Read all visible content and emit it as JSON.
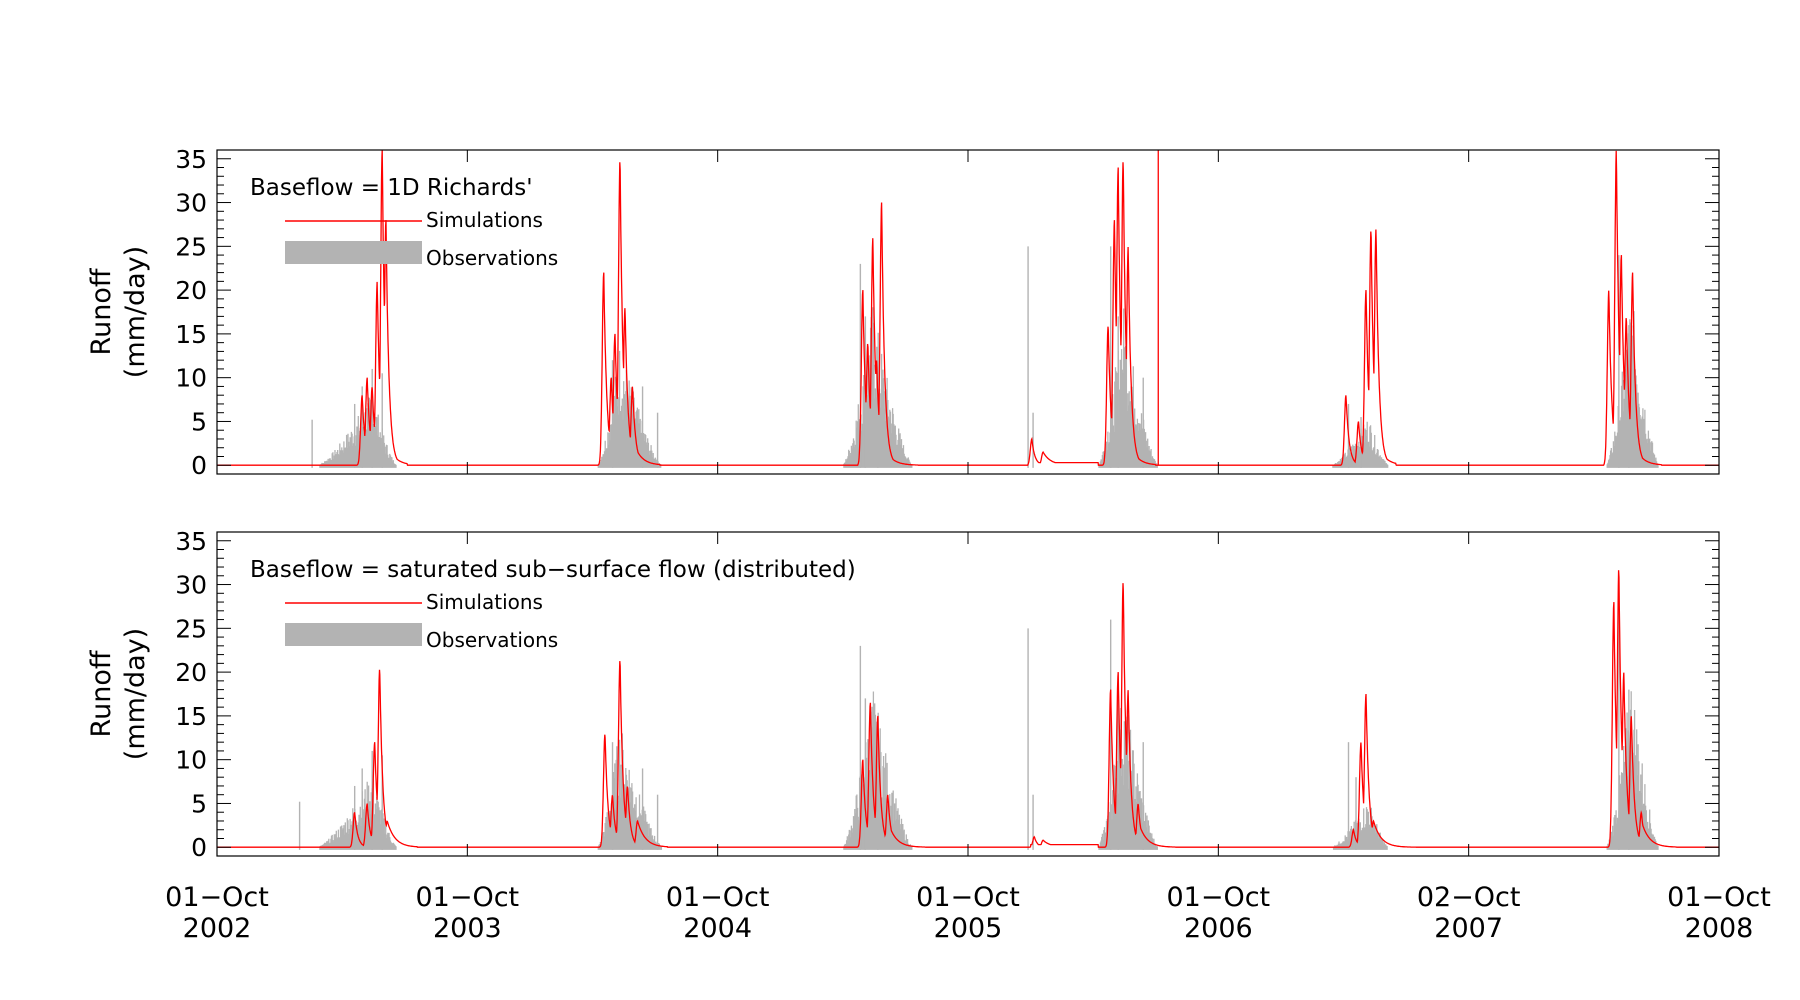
{
  "chart_data": [
    {
      "type": "area",
      "panel": "top",
      "annotation": "Baseflow = 1D Richards'",
      "ylabel_line1": "Runoff",
      "ylabel_line2": "(mm/day)",
      "ylim": [
        -1,
        36
      ],
      "yticks": [
        0,
        5,
        10,
        15,
        20,
        25,
        30,
        35
      ],
      "legend": [
        {
          "name": "Simulations",
          "style": "line",
          "color": "#ff0000"
        },
        {
          "name": "Observations",
          "style": "fill",
          "color": "#b3b3b3"
        }
      ],
      "observations": {
        "seasons": [
          {
            "start": 0.4,
            "peak": 0.62,
            "end": 0.72,
            "height": 6,
            "spikes": [
              [
                0.38,
                5.2
              ],
              [
                0.55,
                7
              ],
              [
                0.58,
                9
              ],
              [
                0.62,
                11
              ],
              [
                0.66,
                10.5
              ]
            ]
          },
          {
            "start": 1.52,
            "peak": 1.61,
            "end": 1.78,
            "height": 10,
            "spikes": [
              [
                1.58,
                12
              ],
              [
                1.7,
                9
              ],
              [
                1.76,
                6
              ]
            ]
          },
          {
            "start": 2.5,
            "peak": 2.62,
            "end": 2.78,
            "height": 13,
            "spikes": [
              [
                2.57,
                23
              ],
              [
                2.59,
                17
              ],
              [
                2.64,
                12
              ]
            ]
          },
          {
            "start": 3.27,
            "peak": 3.27,
            "end": 3.27,
            "height": 0,
            "spikes": [
              [
                3.24,
                25
              ],
              [
                3.26,
                6
              ]
            ]
          },
          {
            "start": 3.52,
            "peak": 3.62,
            "end": 3.76,
            "height": 13,
            "spikes": [
              [
                3.57,
                25
              ],
              [
                3.6,
                17
              ],
              [
                3.7,
                10
              ]
            ]
          },
          {
            "start": 4.45,
            "peak": 4.6,
            "end": 4.68,
            "height": 4,
            "spikes": [
              [
                4.52,
                7
              ],
              [
                4.57,
                5.5
              ]
            ]
          },
          {
            "start": 5.55,
            "peak": 5.65,
            "end": 5.76,
            "height": 14,
            "spikes": [
              [
                5.6,
                24
              ],
              [
                5.64,
                16
              ]
            ]
          }
        ]
      },
      "simulations": {
        "events": [
          {
            "start": 0.56,
            "end": 0.71,
            "peaks": [
              [
                0.58,
                8
              ],
              [
                0.6,
                10
              ],
              [
                0.62,
                9
              ],
              [
                0.64,
                21
              ],
              [
                0.66,
                36
              ],
              [
                0.675,
                28
              ]
            ]
          },
          {
            "start": 1.53,
            "end": 1.72,
            "peaks": [
              [
                1.545,
                22
              ],
              [
                1.575,
                10
              ],
              [
                1.59,
                15
              ],
              [
                1.61,
                35
              ],
              [
                1.63,
                18
              ],
              [
                1.66,
                9
              ]
            ]
          },
          {
            "start": 2.57,
            "end": 2.75,
            "peaks": [
              [
                2.58,
                20
              ],
              [
                2.6,
                14
              ],
              [
                2.62,
                26
              ],
              [
                2.635,
                12
              ],
              [
                2.655,
                30
              ]
            ]
          },
          {
            "start": 3.25,
            "end": 3.52,
            "peaks": [
              [
                3.255,
                3
              ],
              [
                3.3,
                1.5
              ]
            ],
            "plateau": 0.3
          },
          {
            "start": 3.53,
            "end": 3.7,
            "peaks": [
              [
                3.56,
                16
              ],
              [
                3.585,
                28
              ],
              [
                3.6,
                34
              ],
              [
                3.62,
                35
              ],
              [
                3.64,
                25
              ]
            ]
          },
          {
            "start": 4.5,
            "end": 4.66,
            "peaks": [
              [
                4.51,
                8
              ],
              [
                4.56,
                5
              ],
              [
                4.59,
                20
              ],
              [
                4.61,
                27
              ],
              [
                4.63,
                27
              ]
            ]
          },
          {
            "start": 5.55,
            "end": 5.72,
            "peaks": [
              [
                5.56,
                20
              ],
              [
                5.59,
                36
              ],
              [
                5.61,
                24
              ],
              [
                5.63,
                17
              ],
              [
                5.655,
                22
              ]
            ]
          }
        ],
        "spike": [
          3.76,
          36
        ]
      }
    },
    {
      "type": "area",
      "panel": "bottom",
      "annotation": "Baseflow = saturated sub−surface flow (distributed)",
      "ylabel_line1": "Runoff",
      "ylabel_line2": "(mm/day)",
      "ylim": [
        -1,
        36
      ],
      "yticks": [
        0,
        5,
        10,
        15,
        20,
        25,
        30,
        35
      ],
      "legend": [
        {
          "name": "Simulations",
          "style": "line",
          "color": "#ff0000"
        },
        {
          "name": "Observations",
          "style": "fill",
          "color": "#b3b3b3"
        }
      ],
      "observations": {
        "seasons": [
          {
            "start": 0.4,
            "peak": 0.62,
            "end": 0.72,
            "height": 6,
            "spikes": [
              [
                0.33,
                5.2
              ],
              [
                0.55,
                7
              ],
              [
                0.58,
                9
              ],
              [
                0.62,
                11
              ],
              [
                0.66,
                10.5
              ]
            ]
          },
          {
            "start": 1.52,
            "peak": 1.61,
            "end": 1.78,
            "height": 10,
            "spikes": [
              [
                1.58,
                12
              ],
              [
                1.7,
                9
              ],
              [
                1.76,
                6
              ]
            ]
          },
          {
            "start": 2.5,
            "peak": 2.62,
            "end": 2.78,
            "height": 13,
            "spikes": [
              [
                2.57,
                23
              ],
              [
                2.59,
                17
              ],
              [
                2.64,
                12
              ]
            ]
          },
          {
            "start": 3.27,
            "peak": 3.27,
            "end": 3.27,
            "height": 0,
            "spikes": [
              [
                3.24,
                25
              ],
              [
                3.26,
                6
              ]
            ]
          },
          {
            "start": 3.52,
            "peak": 3.62,
            "end": 3.76,
            "height": 13,
            "spikes": [
              [
                3.57,
                26
              ],
              [
                3.6,
                17
              ],
              [
                3.7,
                12
              ]
            ]
          },
          {
            "start": 4.45,
            "peak": 4.6,
            "end": 4.68,
            "height": 4,
            "spikes": [
              [
                4.52,
                12
              ],
              [
                4.55,
                8
              ]
            ]
          },
          {
            "start": 5.55,
            "peak": 5.65,
            "end": 5.76,
            "height": 14,
            "spikes": [
              [
                5.6,
                28
              ],
              [
                5.64,
                18
              ]
            ]
          }
        ]
      },
      "simulations": {
        "events": [
          {
            "start": 0.44,
            "end": 0.75,
            "peaks": [
              [
                0.55,
                4
              ],
              [
                0.6,
                5
              ],
              [
                0.63,
                12
              ],
              [
                0.65,
                20.5
              ],
              [
                0.68,
                3
              ]
            ]
          },
          {
            "start": 1.49,
            "end": 1.75,
            "peaks": [
              [
                1.55,
                13
              ],
              [
                1.58,
                6
              ],
              [
                1.61,
                21.5
              ],
              [
                1.64,
                7
              ],
              [
                1.68,
                3
              ]
            ]
          },
          {
            "start": 2.52,
            "end": 2.78,
            "peaks": [
              [
                2.58,
                10
              ],
              [
                2.61,
                16.5
              ],
              [
                2.64,
                15
              ],
              [
                2.68,
                6
              ]
            ]
          },
          {
            "start": 3.25,
            "end": 3.52,
            "peaks": [
              [
                3.265,
                1.2
              ],
              [
                3.3,
                0.8
              ]
            ],
            "plateau": 0.3
          },
          {
            "start": 3.52,
            "end": 3.78,
            "peaks": [
              [
                3.57,
                18
              ],
              [
                3.6,
                20
              ],
              [
                3.62,
                30.5
              ],
              [
                3.64,
                18
              ],
              [
                3.68,
                5
              ]
            ]
          },
          {
            "start": 4.45,
            "end": 4.75,
            "peaks": [
              [
                4.54,
                2
              ],
              [
                4.57,
                12
              ],
              [
                4.59,
                17.5
              ],
              [
                4.62,
                3
              ]
            ]
          },
          {
            "start": 5.53,
            "end": 5.78,
            "peaks": [
              [
                5.58,
                28
              ],
              [
                5.6,
                32
              ],
              [
                5.62,
                20
              ],
              [
                5.65,
                15
              ],
              [
                5.69,
                4
              ]
            ]
          }
        ]
      }
    }
  ],
  "x_axis": {
    "range_years": [
      0,
      6
    ],
    "tick_labels": [
      {
        "day": "01−Oct",
        "year": "2002",
        "pos": 0
      },
      {
        "day": "01−Oct",
        "year": "2003",
        "pos": 1
      },
      {
        "day": "01−Oct",
        "year": "2004",
        "pos": 2
      },
      {
        "day": "01−Oct",
        "year": "2005",
        "pos": 3
      },
      {
        "day": "01−Oct",
        "year": "2006",
        "pos": 4
      },
      {
        "day": "02−Oct",
        "year": "2007",
        "pos": 5
      },
      {
        "day": "01−Oct",
        "year": "2008",
        "pos": 6
      }
    ]
  }
}
